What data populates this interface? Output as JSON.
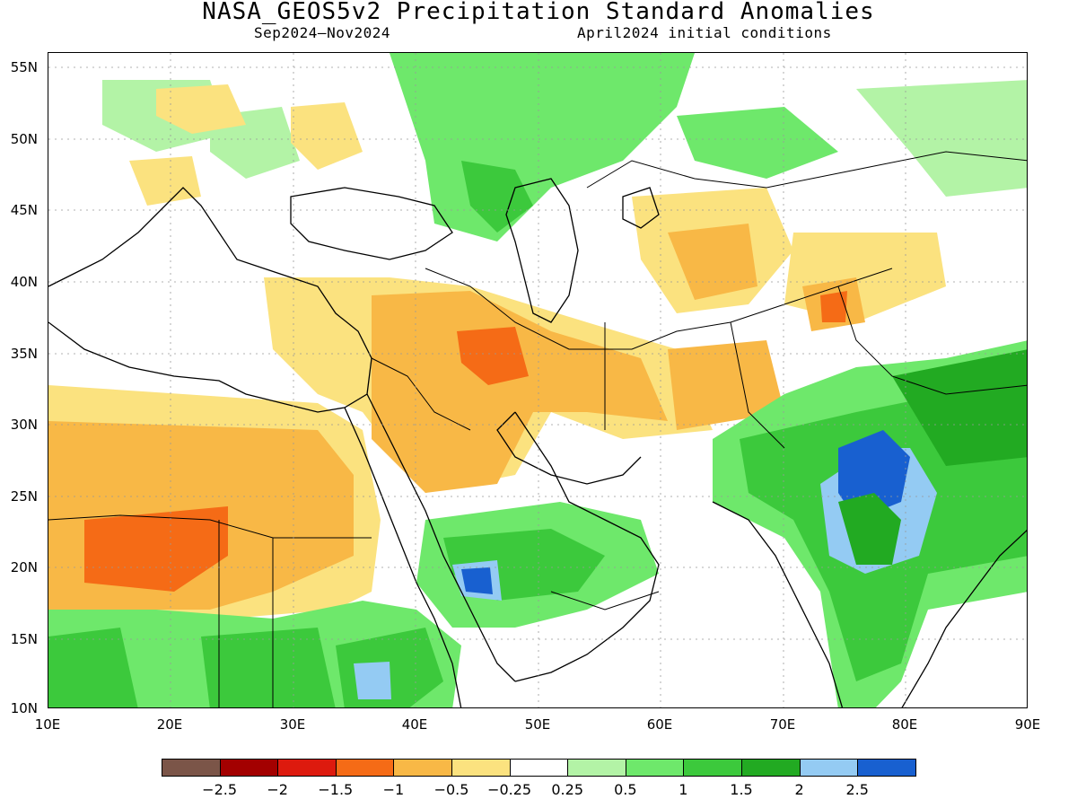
{
  "header": {
    "title": "NASA_GEOS5v2 Precipitation Standard Anomalies",
    "period": "Sep2024–Nov2024",
    "init": "April2024 initial conditions"
  },
  "map": {
    "lat_labels": [
      "55N",
      "50N",
      "45N",
      "40N",
      "35N",
      "30N",
      "25N",
      "20N",
      "15N",
      "10N"
    ],
    "lon_labels": [
      "10E",
      "20E",
      "30E",
      "40E",
      "50E",
      "60E",
      "70E",
      "80E",
      "90E"
    ]
  },
  "colorbar": {
    "colors": [
      "#7b5548",
      "#a30000",
      "#dd1a0e",
      "#f56b16",
      "#f8b846",
      "#fbe27f",
      "#ffffff",
      "#b3f3a6",
      "#6ee86b",
      "#3cc93c",
      "#22aa22",
      "#94cbf3",
      "#1860d0"
    ],
    "labels": [
      "−2.5",
      "−2",
      "−1.5",
      "−1",
      "−0.5",
      "−0.25",
      "0.25",
      "0.5",
      "1",
      "1.5",
      "2",
      "2.5"
    ]
  }
}
